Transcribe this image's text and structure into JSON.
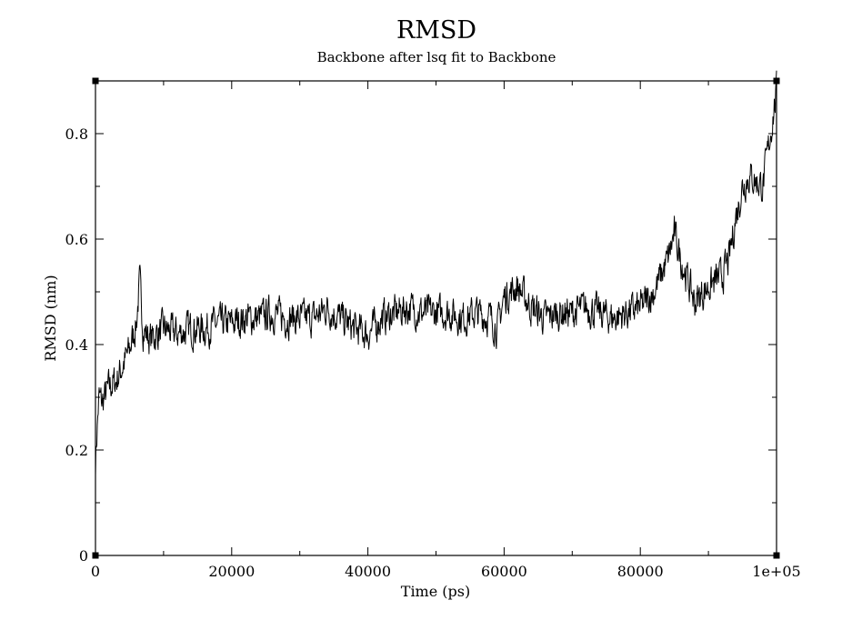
{
  "chart_data": {
    "type": "line",
    "title": "RMSD",
    "subtitle": "Backbone after lsq fit to Backbone",
    "xlabel": "Time (ps)",
    "ylabel": "RMSD (nm)",
    "xlim": [
      0,
      100000
    ],
    "ylim": [
      0,
      0.9
    ],
    "x_ticks": [
      0,
      20000,
      40000,
      60000,
      80000,
      100000
    ],
    "x_tick_labels": [
      "0",
      "20000",
      "40000",
      "60000",
      "80000",
      "1e+05"
    ],
    "y_ticks": [
      0,
      0.2,
      0.4,
      0.6,
      0.8
    ],
    "y_tick_labels": [
      "0",
      "0.2",
      "0.4",
      "0.6",
      "0.8"
    ],
    "grid": false,
    "line_color": "#000000",
    "series": [
      {
        "x": [
          0,
          500,
          1000,
          2000,
          3000,
          4000,
          5000,
          6000,
          6500,
          7000,
          8000,
          10000,
          12000,
          14000,
          16000,
          18000,
          20000,
          22000,
          24000,
          26000,
          28000,
          30000,
          32000,
          34000,
          36000,
          38000,
          40000,
          42000,
          44000,
          46000,
          48000,
          50000,
          52000,
          54000,
          56000,
          58000,
          59000,
          60000,
          62000,
          64000,
          66000,
          68000,
          70000,
          72000,
          74000,
          76000,
          78000,
          80000,
          82000,
          84000,
          85000,
          86000,
          88000,
          90000,
          92000,
          93000,
          94000,
          95000,
          96000,
          97000,
          98000,
          99000,
          100000
        ],
        "values": [
          0.18,
          0.3,
          0.29,
          0.32,
          0.33,
          0.36,
          0.39,
          0.44,
          0.52,
          0.43,
          0.41,
          0.43,
          0.42,
          0.43,
          0.43,
          0.44,
          0.44,
          0.45,
          0.45,
          0.46,
          0.45,
          0.45,
          0.45,
          0.47,
          0.45,
          0.43,
          0.42,
          0.45,
          0.46,
          0.47,
          0.46,
          0.46,
          0.46,
          0.45,
          0.46,
          0.45,
          0.43,
          0.49,
          0.51,
          0.47,
          0.45,
          0.46,
          0.46,
          0.47,
          0.46,
          0.45,
          0.46,
          0.47,
          0.5,
          0.56,
          0.61,
          0.56,
          0.48,
          0.51,
          0.53,
          0.56,
          0.64,
          0.7,
          0.72,
          0.71,
          0.7,
          0.79,
          0.88
        ]
      }
    ]
  }
}
